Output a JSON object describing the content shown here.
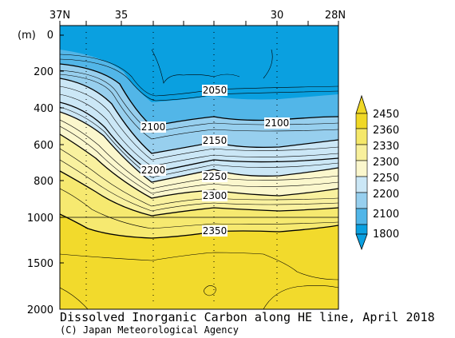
{
  "chart_data": {
    "type": "contour",
    "title": "Dissolved Inorganic Carbon along HE line, April 2018",
    "credit": "(C) Japan Meteorological Agency",
    "y_unit": "(m)",
    "x_ticks": [
      "37N",
      "35",
      "30",
      "28N"
    ],
    "y_ticks": [
      "0",
      "200",
      "400",
      "600",
      "800",
      "1000",
      "1500",
      "2000"
    ],
    "y_scale": "piecewise-linear: 0-1000 m expanded, 1000-2000 m compressed",
    "contour_labels": [
      "2050",
      "2100",
      "2100",
      "2150",
      "2200",
      "2250",
      "2300",
      "2350"
    ],
    "legend": {
      "labels": [
        "2450",
        "2360",
        "2330",
        "2300",
        "2250",
        "2200",
        "2100",
        "1800"
      ],
      "colors": [
        "#f0d826",
        "#f5e86a",
        "#f8f09c",
        "#fbf7cd",
        "#cbe7f6",
        "#97cfee",
        "#52b6e8",
        "#0aa0e0"
      ]
    }
  }
}
